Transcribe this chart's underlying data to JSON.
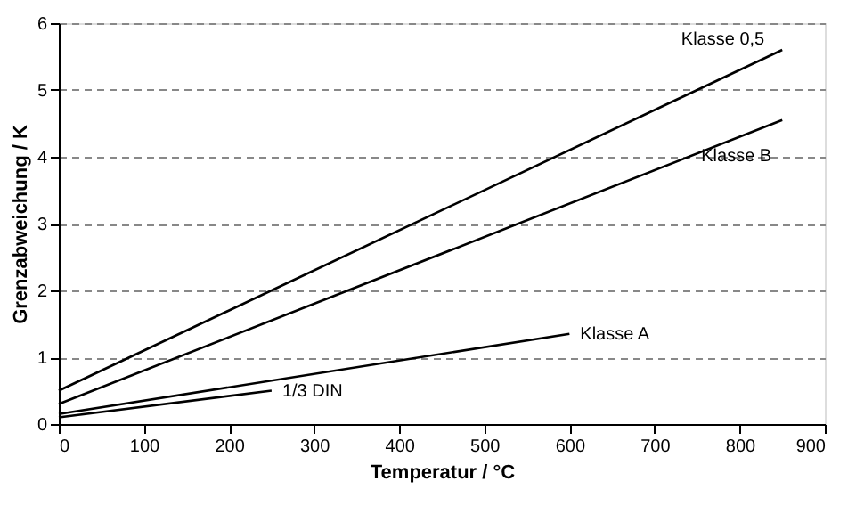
{
  "chart_data": {
    "type": "line",
    "xlabel": "Temperatur / °C",
    "ylabel": "Grenzabweichung / K",
    "xlim": [
      0,
      900
    ],
    "xticks": [
      0,
      100,
      200,
      300,
      400,
      500,
      600,
      700,
      800,
      900
    ],
    "ylim": [
      0,
      6
    ],
    "yticks": [
      0,
      1,
      2,
      3,
      4,
      5,
      6
    ],
    "grid": "y",
    "line_style": "solid",
    "marker": "none",
    "series": [
      {
        "name": "Klasse 0,5",
        "color": "#000000",
        "x": [
          0,
          850
        ],
        "values": [
          0.5,
          5.6
        ]
      },
      {
        "name": "Klasse B",
        "color": "#000000",
        "x": [
          0,
          850
        ],
        "values": [
          0.3,
          4.55
        ]
      },
      {
        "name": "Klasse A",
        "color": "#000000",
        "x": [
          0,
          600
        ],
        "values": [
          0.15,
          1.35
        ]
      },
      {
        "name": "1/3 DIN",
        "color": "#000000",
        "x": [
          0,
          250
        ],
        "values": [
          0.1,
          0.5
        ]
      }
    ]
  }
}
